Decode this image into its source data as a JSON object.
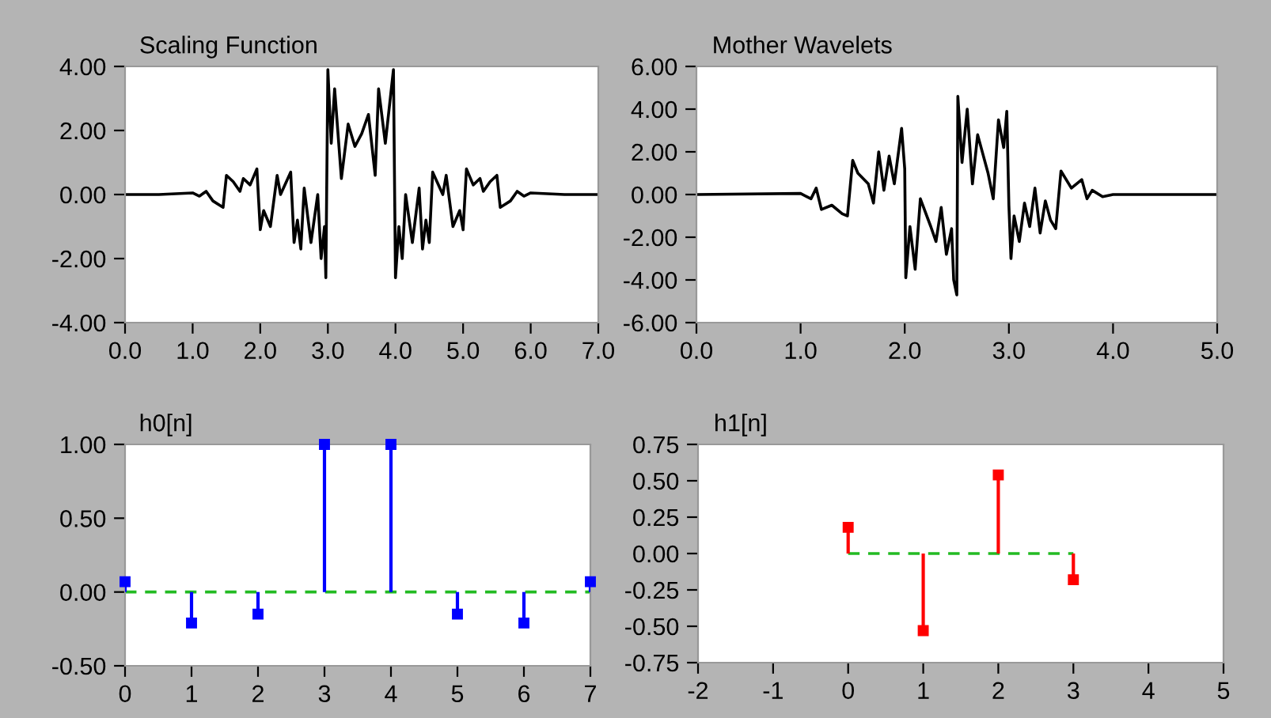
{
  "chart_data": [
    {
      "type": "line",
      "title": "Scaling Function",
      "xlim": [
        0,
        7
      ],
      "ylim": [
        -4,
        4
      ],
      "xticks": [
        {
          "value": 0,
          "label": "0.0"
        },
        {
          "value": 1,
          "label": "1.0"
        },
        {
          "value": 2,
          "label": "2.0"
        },
        {
          "value": 3,
          "label": "3.0"
        },
        {
          "value": 4,
          "label": "4.0"
        },
        {
          "value": 5,
          "label": "5.0"
        },
        {
          "value": 6,
          "label": "6.0"
        },
        {
          "value": 7,
          "label": "7.0"
        }
      ],
      "yticks": [
        {
          "value": -4,
          "label": "-4.00"
        },
        {
          "value": -2,
          "label": "-2.00"
        },
        {
          "value": 0,
          "label": "0.00"
        },
        {
          "value": 2,
          "label": "2.00"
        },
        {
          "value": 4,
          "label": "4.00"
        }
      ],
      "grid": false,
      "legend": false,
      "series": [
        {
          "color": "#000000",
          "x": [
            0,
            0.5,
            1.0,
            1.1,
            1.2,
            1.3,
            1.45,
            1.5,
            1.6,
            1.7,
            1.75,
            1.85,
            1.95,
            2.0,
            2.05,
            2.15,
            2.25,
            2.3,
            2.45,
            2.5,
            2.55,
            2.6,
            2.65,
            2.75,
            2.85,
            2.9,
            2.95,
            2.97,
            3.0,
            3.05,
            3.1,
            3.2,
            3.3,
            3.4,
            3.5,
            3.6,
            3.7,
            3.75,
            3.85,
            3.97,
            4.0,
            4.05,
            4.1,
            4.15,
            4.25,
            4.35,
            4.4,
            4.45,
            4.5,
            4.55,
            4.7,
            4.75,
            4.85,
            4.95,
            5.0,
            5.05,
            5.15,
            5.25,
            5.3,
            5.4,
            5.5,
            5.55,
            5.7,
            5.8,
            5.9,
            6.0,
            6.5,
            7.0
          ],
          "values": [
            0,
            0,
            0.05,
            -0.05,
            0.1,
            -0.2,
            -0.4,
            0.6,
            0.4,
            0.1,
            0.5,
            0.3,
            0.8,
            -1.1,
            -0.5,
            -1.0,
            0.6,
            0.0,
            0.7,
            -1.5,
            -0.8,
            -1.7,
            0.2,
            -1.5,
            0.0,
            -2.0,
            -1.0,
            -2.6,
            3.9,
            1.6,
            3.3,
            0.5,
            2.2,
            1.5,
            1.9,
            2.5,
            0.6,
            3.3,
            1.6,
            3.9,
            -2.6,
            -1.0,
            -2.0,
            0.0,
            -1.5,
            0.2,
            -1.7,
            -0.8,
            -1.5,
            0.7,
            0.0,
            0.6,
            -1.0,
            -0.5,
            -1.1,
            0.8,
            0.3,
            0.5,
            0.1,
            0.4,
            0.6,
            -0.4,
            -0.2,
            0.1,
            -0.05,
            0.05,
            0,
            0
          ]
        }
      ]
    },
    {
      "type": "line",
      "title": "Mother Wavelets",
      "xlim": [
        0,
        5
      ],
      "ylim": [
        -6,
        6
      ],
      "xticks": [
        {
          "value": 0,
          "label": "0.0"
        },
        {
          "value": 1,
          "label": "1.0"
        },
        {
          "value": 2,
          "label": "2.0"
        },
        {
          "value": 3,
          "label": "3.0"
        },
        {
          "value": 4,
          "label": "4.0"
        },
        {
          "value": 5,
          "label": "5.0"
        }
      ],
      "yticks": [
        {
          "value": -6,
          "label": "-6.00"
        },
        {
          "value": -4,
          "label": "-4.00"
        },
        {
          "value": -2,
          "label": "-2.00"
        },
        {
          "value": 0,
          "label": "0.00"
        },
        {
          "value": 2,
          "label": "2.00"
        },
        {
          "value": 4,
          "label": "4.00"
        },
        {
          "value": 6,
          "label": "6.00"
        }
      ],
      "grid": false,
      "legend": false,
      "series": [
        {
          "color": "#000000",
          "x": [
            0,
            1.0,
            1.1,
            1.15,
            1.2,
            1.3,
            1.4,
            1.45,
            1.5,
            1.55,
            1.65,
            1.7,
            1.75,
            1.8,
            1.85,
            1.9,
            1.97,
            2.0,
            2.01,
            2.05,
            2.1,
            2.15,
            2.25,
            2.3,
            2.35,
            2.4,
            2.45,
            2.47,
            2.5,
            2.51,
            2.55,
            2.6,
            2.65,
            2.7,
            2.8,
            2.85,
            2.9,
            2.95,
            2.98,
            3.0,
            3.02,
            3.05,
            3.1,
            3.15,
            3.2,
            3.25,
            3.3,
            3.35,
            3.4,
            3.45,
            3.5,
            3.6,
            3.7,
            3.75,
            3.8,
            3.9,
            4.0,
            5.0
          ],
          "values": [
            0,
            0.05,
            -0.2,
            0.3,
            -0.7,
            -0.5,
            -0.9,
            -1.0,
            1.6,
            1.0,
            0.5,
            -0.4,
            2.0,
            0.2,
            1.8,
            0.5,
            3.1,
            1.2,
            -3.9,
            -1.5,
            -3.5,
            -0.2,
            -1.5,
            -2.2,
            -0.6,
            -2.8,
            -1.6,
            -4.0,
            -4.7,
            4.6,
            1.5,
            4.0,
            0.5,
            2.8,
            1.0,
            -0.2,
            3.5,
            2.2,
            3.9,
            -0.5,
            -3.0,
            -1.0,
            -2.2,
            -0.4,
            -1.5,
            0.3,
            -1.8,
            -0.3,
            -1.2,
            -1.6,
            1.1,
            0.3,
            0.7,
            -0.2,
            0.2,
            -0.1,
            0.0,
            0
          ]
        }
      ]
    },
    {
      "type": "lollipop",
      "title": "h0[n]",
      "xlim": [
        0,
        7
      ],
      "ylim": [
        -0.5,
        1.0
      ],
      "xticks": [
        0,
        1,
        2,
        3,
        4,
        5,
        6,
        7
      ],
      "yticks": [
        {
          "value": -0.5,
          "label": "-0.50"
        },
        {
          "value": 0,
          "label": "0.00"
        },
        {
          "value": 0.5,
          "label": "0.50"
        },
        {
          "value": 1,
          "label": "1.00"
        }
      ],
      "grid": false,
      "legend": false,
      "series": [
        {
          "type": "line",
          "color": "#22bb22",
          "line_style": "dashed",
          "x": [
            0,
            7
          ],
          "values": [
            0,
            0
          ]
        },
        {
          "type": "lollipop",
          "marker": "square",
          "color": "#0000ff",
          "x": [
            0,
            1,
            2,
            3,
            4,
            5,
            6,
            7
          ],
          "values": [
            0.07,
            -0.21,
            -0.15,
            1.0,
            1.0,
            -0.15,
            -0.21,
            0.07
          ]
        }
      ]
    },
    {
      "type": "lollipop",
      "title": "h1[n]",
      "xlim": [
        -2,
        5
      ],
      "ylim": [
        -0.75,
        0.75
      ],
      "xticks": [
        -2,
        -1,
        0,
        1,
        2,
        3,
        4,
        5
      ],
      "yticks": [
        {
          "value": -0.75,
          "label": "-0.75"
        },
        {
          "value": -0.5,
          "label": "-0.50"
        },
        {
          "value": -0.25,
          "label": "-0.25"
        },
        {
          "value": 0,
          "label": "0.00"
        },
        {
          "value": 0.25,
          "label": "0.25"
        },
        {
          "value": 0.5,
          "label": "0.50"
        },
        {
          "value": 0.75,
          "label": "0.75"
        }
      ],
      "grid": false,
      "legend": false,
      "series": [
        {
          "type": "line",
          "color": "#22bb22",
          "line_style": "dashed",
          "x": [
            0,
            3
          ],
          "values": [
            0,
            0
          ]
        },
        {
          "type": "lollipop",
          "marker": "square",
          "color": "#ff0000",
          "x": [
            0,
            1,
            2,
            3
          ],
          "values": [
            0.18,
            -0.53,
            0.54,
            -0.18
          ]
        }
      ]
    }
  ]
}
